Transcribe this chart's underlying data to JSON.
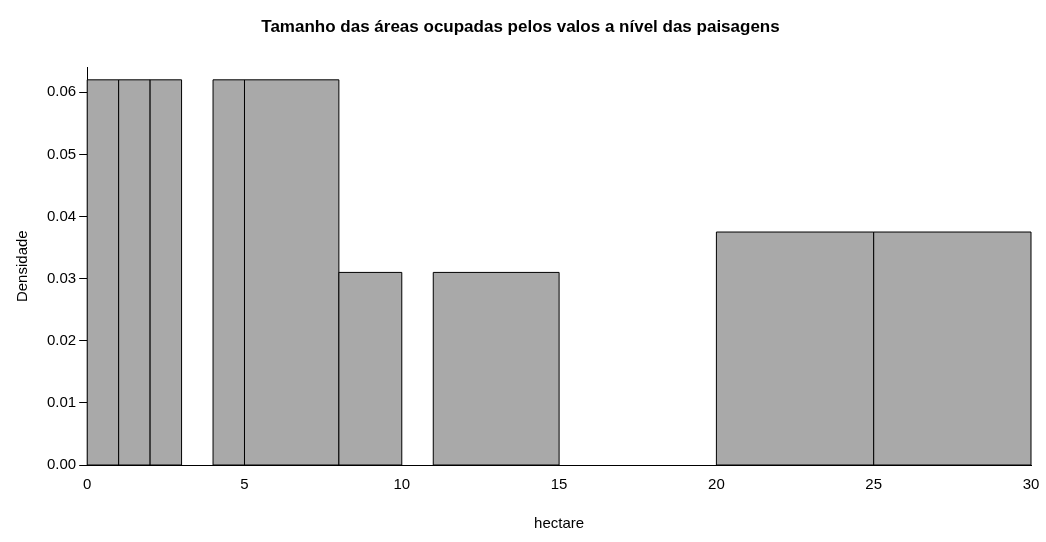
{
  "chart_data": {
    "type": "histogram",
    "title": "Tamanho das áreas ocupadas pelos valos a nível das paisagens",
    "xlabel": "hectare",
    "ylabel": "Densidade",
    "bins": [
      0,
      1,
      2,
      3,
      4,
      5,
      8,
      10,
      11,
      15,
      20,
      25,
      30
    ],
    "values": [
      0.062,
      0.062,
      0.062,
      0,
      0.062,
      0.062,
      0.031,
      0,
      0.031,
      0,
      0.0375,
      0.0375
    ],
    "color": "#a9a9a9",
    "xlim": [
      0,
      30
    ],
    "xticks": [
      0,
      5,
      10,
      15,
      20,
      25,
      30
    ],
    "ylim": [
      0,
      0.064
    ],
    "yticks": [
      {
        "value": 0,
        "label": "0.00"
      },
      {
        "value": 0.01,
        "label": "0.01"
      },
      {
        "value": 0.02,
        "label": "0.02"
      },
      {
        "value": 0.03,
        "label": "0.03"
      },
      {
        "value": 0.04,
        "label": "0.04"
      },
      {
        "value": 0.05,
        "label": "0.05"
      },
      {
        "value": 0.06,
        "label": "0.06"
      }
    ],
    "grid": false,
    "legend": false
  }
}
